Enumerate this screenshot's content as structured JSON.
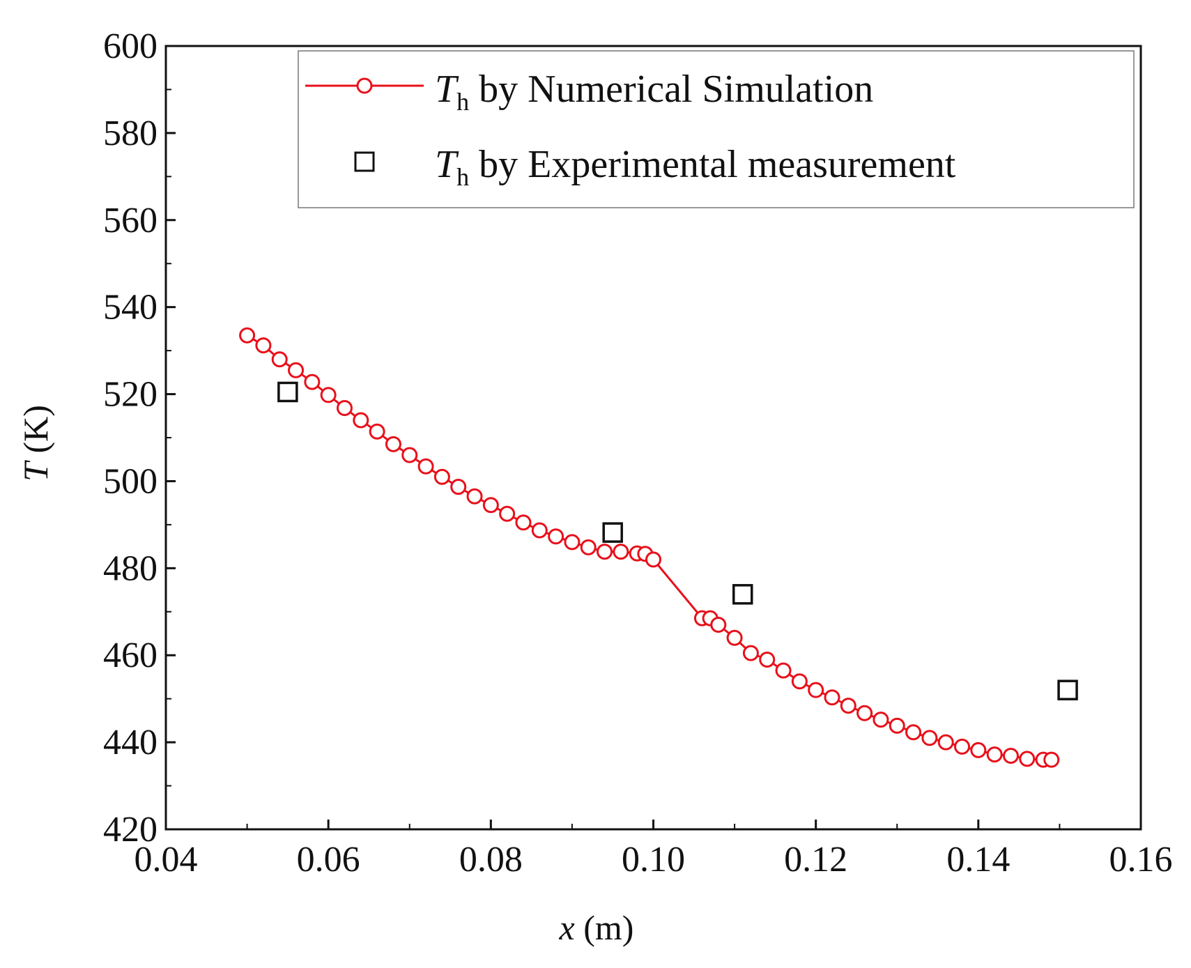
{
  "chart_data": {
    "type": "scatter",
    "title": "",
    "xlabel": {
      "var": "x",
      "unit": " (m)"
    },
    "ylabel": {
      "var": "T",
      "unit": " (K)"
    },
    "xlim": [
      0.04,
      0.16
    ],
    "ylim": [
      420,
      600
    ],
    "x_ticks": [
      0.04,
      0.06,
      0.08,
      0.1,
      0.12,
      0.14,
      0.16
    ],
    "x_tick_labels": [
      "0.04",
      "0.06",
      "0.08",
      "0.10",
      "0.12",
      "0.14",
      "0.16"
    ],
    "y_ticks": [
      420,
      440,
      460,
      480,
      500,
      520,
      540,
      560,
      580,
      600
    ],
    "y_tick_labels": [
      "420",
      "440",
      "460",
      "480",
      "500",
      "520",
      "540",
      "560",
      "580",
      "600"
    ],
    "grid": false,
    "legend_position": "top-right",
    "series": [
      {
        "name": "T_h by Numerical Simulation",
        "legend_var": "T",
        "legend_sub": "h",
        "legend_text": " by Numerical Simulation",
        "style": "line-with-open-circles",
        "color": "#e8101a",
        "x": [
          0.05,
          0.052,
          0.054,
          0.056,
          0.058,
          0.06,
          0.062,
          0.064,
          0.066,
          0.068,
          0.07,
          0.072,
          0.074,
          0.076,
          0.078,
          0.08,
          0.082,
          0.084,
          0.086,
          0.088,
          0.09,
          0.092,
          0.094,
          0.096,
          0.098,
          0.099,
          0.1,
          0.106,
          0.107,
          0.108,
          0.11,
          0.112,
          0.114,
          0.116,
          0.118,
          0.12,
          0.122,
          0.124,
          0.126,
          0.128,
          0.13,
          0.132,
          0.134,
          0.136,
          0.138,
          0.14,
          0.142,
          0.144,
          0.146,
          0.148,
          0.149
        ],
        "y": [
          533.5,
          531.2,
          528.0,
          525.5,
          522.8,
          519.8,
          516.8,
          514.0,
          511.4,
          508.5,
          506.0,
          503.4,
          501.0,
          498.7,
          496.5,
          494.5,
          492.5,
          490.5,
          488.7,
          487.3,
          486.0,
          484.8,
          483.8,
          483.8,
          483.4,
          483.3,
          482.0,
          468.5,
          468.5,
          467.0,
          464.0,
          460.5,
          459.0,
          456.5,
          454.0,
          452.0,
          450.3,
          448.4,
          446.7,
          445.2,
          443.8,
          442.3,
          441.0,
          440.0,
          439.0,
          438.2,
          437.2,
          436.9,
          436.2,
          436.0,
          436.0
        ]
      },
      {
        "name": "T_h by Experimental measurement",
        "legend_var": "T",
        "legend_sub": "h",
        "legend_text": " by Experimental measurement",
        "style": "open-squares",
        "color": "#111111",
        "x": [
          0.055,
          0.095,
          0.111,
          0.151
        ],
        "y": [
          520.5,
          488.2,
          474.0,
          452.0
        ]
      }
    ]
  }
}
